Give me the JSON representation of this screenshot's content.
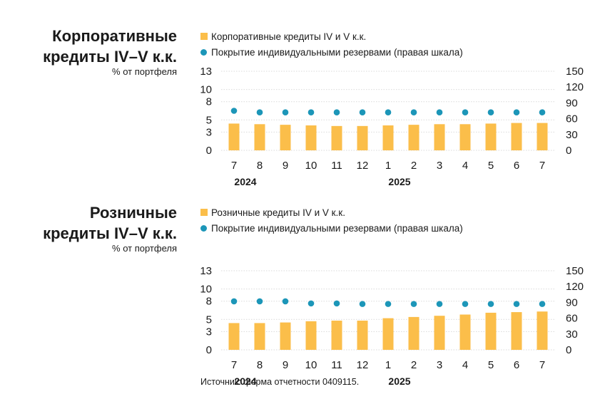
{
  "source_note": "Источник: форма отчетности 0409115.",
  "chart_data": [
    {
      "type": "bar",
      "title": [
        "Корпоративные",
        "кредиты IV–V к.к."
      ],
      "ylabel": "% от портфеля",
      "categories": [
        "7",
        "8",
        "9",
        "10",
        "11",
        "12",
        "1",
        "2",
        "3",
        "4",
        "5",
        "6",
        "7"
      ],
      "year_labels": [
        {
          "label": "2024",
          "index": 1
        },
        {
          "label": "2025",
          "index": 7
        }
      ],
      "ylim": [
        0,
        13
      ],
      "y2lim": [
        0,
        150
      ],
      "yticks": [
        0,
        3,
        5,
        8,
        10,
        13
      ],
      "yticks_labels": [
        "0",
        "3",
        "5",
        "8",
        "10",
        "13"
      ],
      "y2ticks": [
        0,
        30,
        60,
        90,
        120,
        150
      ],
      "series": [
        {
          "name": "Корпоративные кредиты IV и V к.к.",
          "kind": "bar",
          "axis": "left",
          "color": "#fbbe4a",
          "values": [
            4.4,
            4.3,
            4.2,
            4.1,
            4.0,
            4.0,
            4.1,
            4.2,
            4.3,
            4.3,
            4.4,
            4.5,
            4.5
          ]
        },
        {
          "name": "Покрытие индивидуальными резервами (правая шкала)",
          "kind": "dot",
          "axis": "right",
          "color": "#1c96b8",
          "values": [
            75,
            72,
            72,
            72,
            72,
            72,
            72,
            72,
            72,
            72,
            72,
            72,
            72
          ]
        }
      ]
    },
    {
      "type": "bar",
      "title": [
        "Розничные",
        "кредиты IV–V к.к."
      ],
      "ylabel": "% от портфеля",
      "categories": [
        "7",
        "8",
        "9",
        "10",
        "11",
        "12",
        "1",
        "2",
        "3",
        "4",
        "5",
        "6",
        "7"
      ],
      "year_labels": [
        {
          "label": "2024",
          "index": 1
        },
        {
          "label": "2025",
          "index": 7
        }
      ],
      "ylim": [
        0,
        13
      ],
      "y2lim": [
        0,
        150
      ],
      "yticks": [
        0,
        3,
        5,
        8,
        10,
        13
      ],
      "yticks_labels": [
        "0",
        "3",
        "5",
        "8",
        "10",
        "13"
      ],
      "y2ticks": [
        0,
        30,
        60,
        90,
        120,
        150
      ],
      "series": [
        {
          "name": "Розничные кредиты IV и V к.к.",
          "kind": "bar",
          "axis": "left",
          "color": "#fbbe4a",
          "values": [
            4.4,
            4.4,
            4.5,
            4.7,
            4.8,
            4.8,
            5.2,
            5.4,
            5.6,
            5.8,
            6.1,
            6.2,
            6.3
          ]
        },
        {
          "name": "Покрытие индивидуальными резервами (правая шкала)",
          "kind": "dot",
          "axis": "right",
          "color": "#1c96b8",
          "values": [
            92,
            92,
            92,
            88,
            88,
            87,
            87,
            87,
            87,
            87,
            87,
            87,
            87
          ]
        }
      ]
    }
  ]
}
